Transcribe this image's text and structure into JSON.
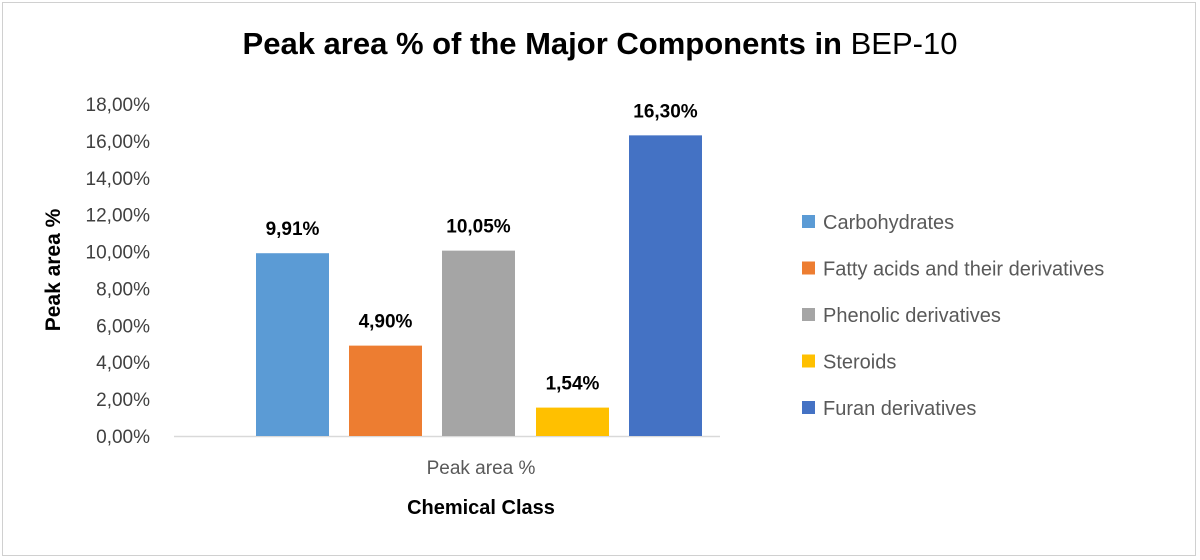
{
  "chart_data": {
    "type": "bar",
    "title": "Peak area % of the Major Components in",
    "title_suffix": "BEP-10",
    "xlabel": "Chemical Class",
    "ylabel": "Peak area %",
    "categories": [
      "Peak area %"
    ],
    "series": [
      {
        "name": "Carbohydrates",
        "values": [
          9.91
        ],
        "label": "9,91%",
        "color": "#5B9BD5"
      },
      {
        "name": "Fatty acids and their derivatives",
        "values": [
          4.9
        ],
        "label": "4,90%",
        "color": "#ED7D31"
      },
      {
        "name": "Phenolic derivatives",
        "values": [
          10.05
        ],
        "label": "10,05%",
        "color": "#A5A5A5"
      },
      {
        "name": "Steroids",
        "values": [
          1.54
        ],
        "label": "1,54%",
        "color": "#FFC000"
      },
      {
        "name": "Furan derivatives",
        "values": [
          16.3
        ],
        "label": "16,30%",
        "color": "#4472C4"
      }
    ],
    "ylim": [
      0,
      18
    ],
    "yticks": [
      0,
      2,
      4,
      6,
      8,
      10,
      12,
      14,
      16,
      18
    ],
    "ytick_labels": [
      "0,00%",
      "2,00%",
      "4,00%",
      "6,00%",
      "8,00%",
      "10,00%",
      "12,00%",
      "14,00%",
      "16,00%",
      "18,00%"
    ],
    "grid": false,
    "legend_position": "right"
  }
}
